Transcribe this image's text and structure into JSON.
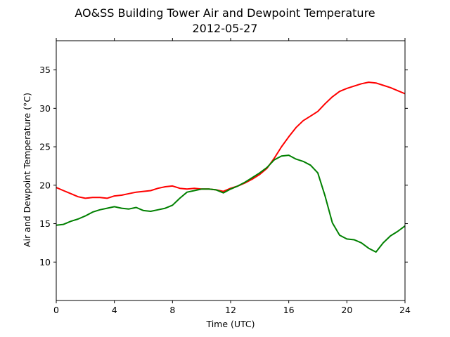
{
  "chart_data": {
    "type": "line",
    "title": "AO&SS Building Tower Air and Dewpoint Temperature",
    "subtitle": "2012-05-27",
    "xlabel": "Time (UTC)",
    "ylabel": "Air and Dewpoint Temperature (°C)",
    "xlim": [
      0,
      24
    ],
    "ylim": [
      5,
      38.8
    ],
    "xticks": [
      0,
      4,
      8,
      12,
      16,
      20,
      24
    ],
    "yticks": [
      10,
      15,
      20,
      25,
      30,
      35
    ],
    "grid": false,
    "series": [
      {
        "color": "#ff0000",
        "x": [
          0,
          0.5,
          1,
          1.5,
          2,
          2.5,
          3,
          3.5,
          4,
          4.5,
          5,
          5.5,
          6,
          6.5,
          7,
          7.5,
          8,
          8.5,
          9,
          9.5,
          10,
          10.5,
          11,
          11.5,
          12,
          12.5,
          13,
          13.5,
          14,
          14.5,
          15,
          15.5,
          16,
          16.5,
          17,
          17.5,
          18,
          18.5,
          19,
          19.5,
          20,
          20.5,
          21,
          21.5,
          22,
          22.5,
          23,
          23.5,
          24
        ],
        "y": [
          19.7,
          19.3,
          18.9,
          18.5,
          18.3,
          18.4,
          18.4,
          18.3,
          18.6,
          18.7,
          18.9,
          19.1,
          19.2,
          19.3,
          19.6,
          19.8,
          19.9,
          19.6,
          19.5,
          19.6,
          19.5,
          19.5,
          19.4,
          19.2,
          19.6,
          19.9,
          20.3,
          20.8,
          21.4,
          22.2,
          23.5,
          25.0,
          26.3,
          27.5,
          28.4,
          29.0,
          29.6,
          30.6,
          31.5,
          32.2,
          32.6,
          32.9,
          33.2,
          33.4,
          33.3,
          33.0,
          32.7,
          32.3,
          31.9
        ]
      },
      {
        "color": "#008000",
        "x": [
          0,
          0.5,
          1,
          1.5,
          2,
          2.5,
          3,
          3.5,
          4,
          4.5,
          5,
          5.5,
          6,
          6.5,
          7,
          7.5,
          8,
          8.5,
          9,
          9.5,
          10,
          10.5,
          11,
          11.5,
          12,
          12.5,
          13,
          13.5,
          14,
          14.5,
          15,
          15.5,
          16,
          16.5,
          17,
          17.5,
          18,
          18.5,
          19,
          19.5,
          20,
          20.5,
          21,
          21.5,
          22,
          22.5,
          23,
          23.5,
          24
        ],
        "y": [
          14.8,
          14.9,
          15.3,
          15.6,
          16.0,
          16.5,
          16.8,
          17.0,
          17.2,
          17.0,
          16.9,
          17.1,
          16.7,
          16.6,
          16.8,
          17.0,
          17.4,
          18.3,
          19.1,
          19.3,
          19.5,
          19.5,
          19.4,
          19.0,
          19.5,
          19.9,
          20.4,
          21.0,
          21.6,
          22.3,
          23.3,
          23.8,
          23.9,
          23.4,
          23.1,
          22.6,
          21.6,
          18.6,
          15.1,
          13.5,
          13.0,
          12.9,
          12.5,
          11.8,
          11.3,
          12.5,
          13.4,
          14.0,
          14.7
        ]
      }
    ]
  }
}
